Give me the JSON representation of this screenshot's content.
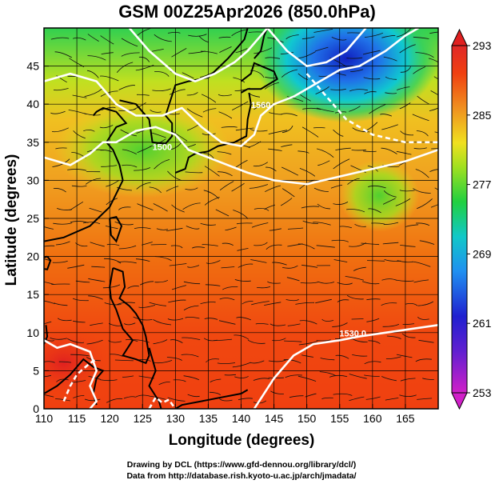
{
  "chart_data": {
    "type": "heatmap",
    "title": "GSM 00Z25Apr2026 (850.0hPa)",
    "xlabel": "Longitude (degrees)",
    "ylabel": "Latitude  (degrees)",
    "xlim": [
      110,
      170
    ],
    "ylim": [
      0,
      50
    ],
    "x_ticks": [
      110,
      115,
      120,
      125,
      130,
      135,
      140,
      145,
      150,
      155,
      160,
      165
    ],
    "y_ticks": [
      0,
      5,
      10,
      15,
      20,
      25,
      30,
      35,
      40,
      45
    ],
    "grid": true,
    "colorbar": {
      "min": 253,
      "max": 293,
      "ticks": [
        253,
        261,
        269,
        277,
        285,
        293
      ],
      "colors": [
        "#d020c8",
        "#2020d0",
        "#2080f0",
        "#10c0d0",
        "#20d060",
        "#90e020",
        "#e8e020",
        "#f09020",
        "#f04010",
        "#e02020"
      ]
    },
    "contour_labels": [
      {
        "text": "1530.0",
        "lon": 157,
        "lat": 9.5
      },
      {
        "text": "1560",
        "lon": 143,
        "lat": 39.5
      },
      {
        "text": "1500",
        "lon": 128,
        "lat": 34
      }
    ],
    "credits": [
      "Drawing by DCL (https://www.gfd-dennou.org/library/dcl/)",
      "Data from http://database.rish.kyoto-u.ac.jp/arch/jmadata/"
    ]
  }
}
